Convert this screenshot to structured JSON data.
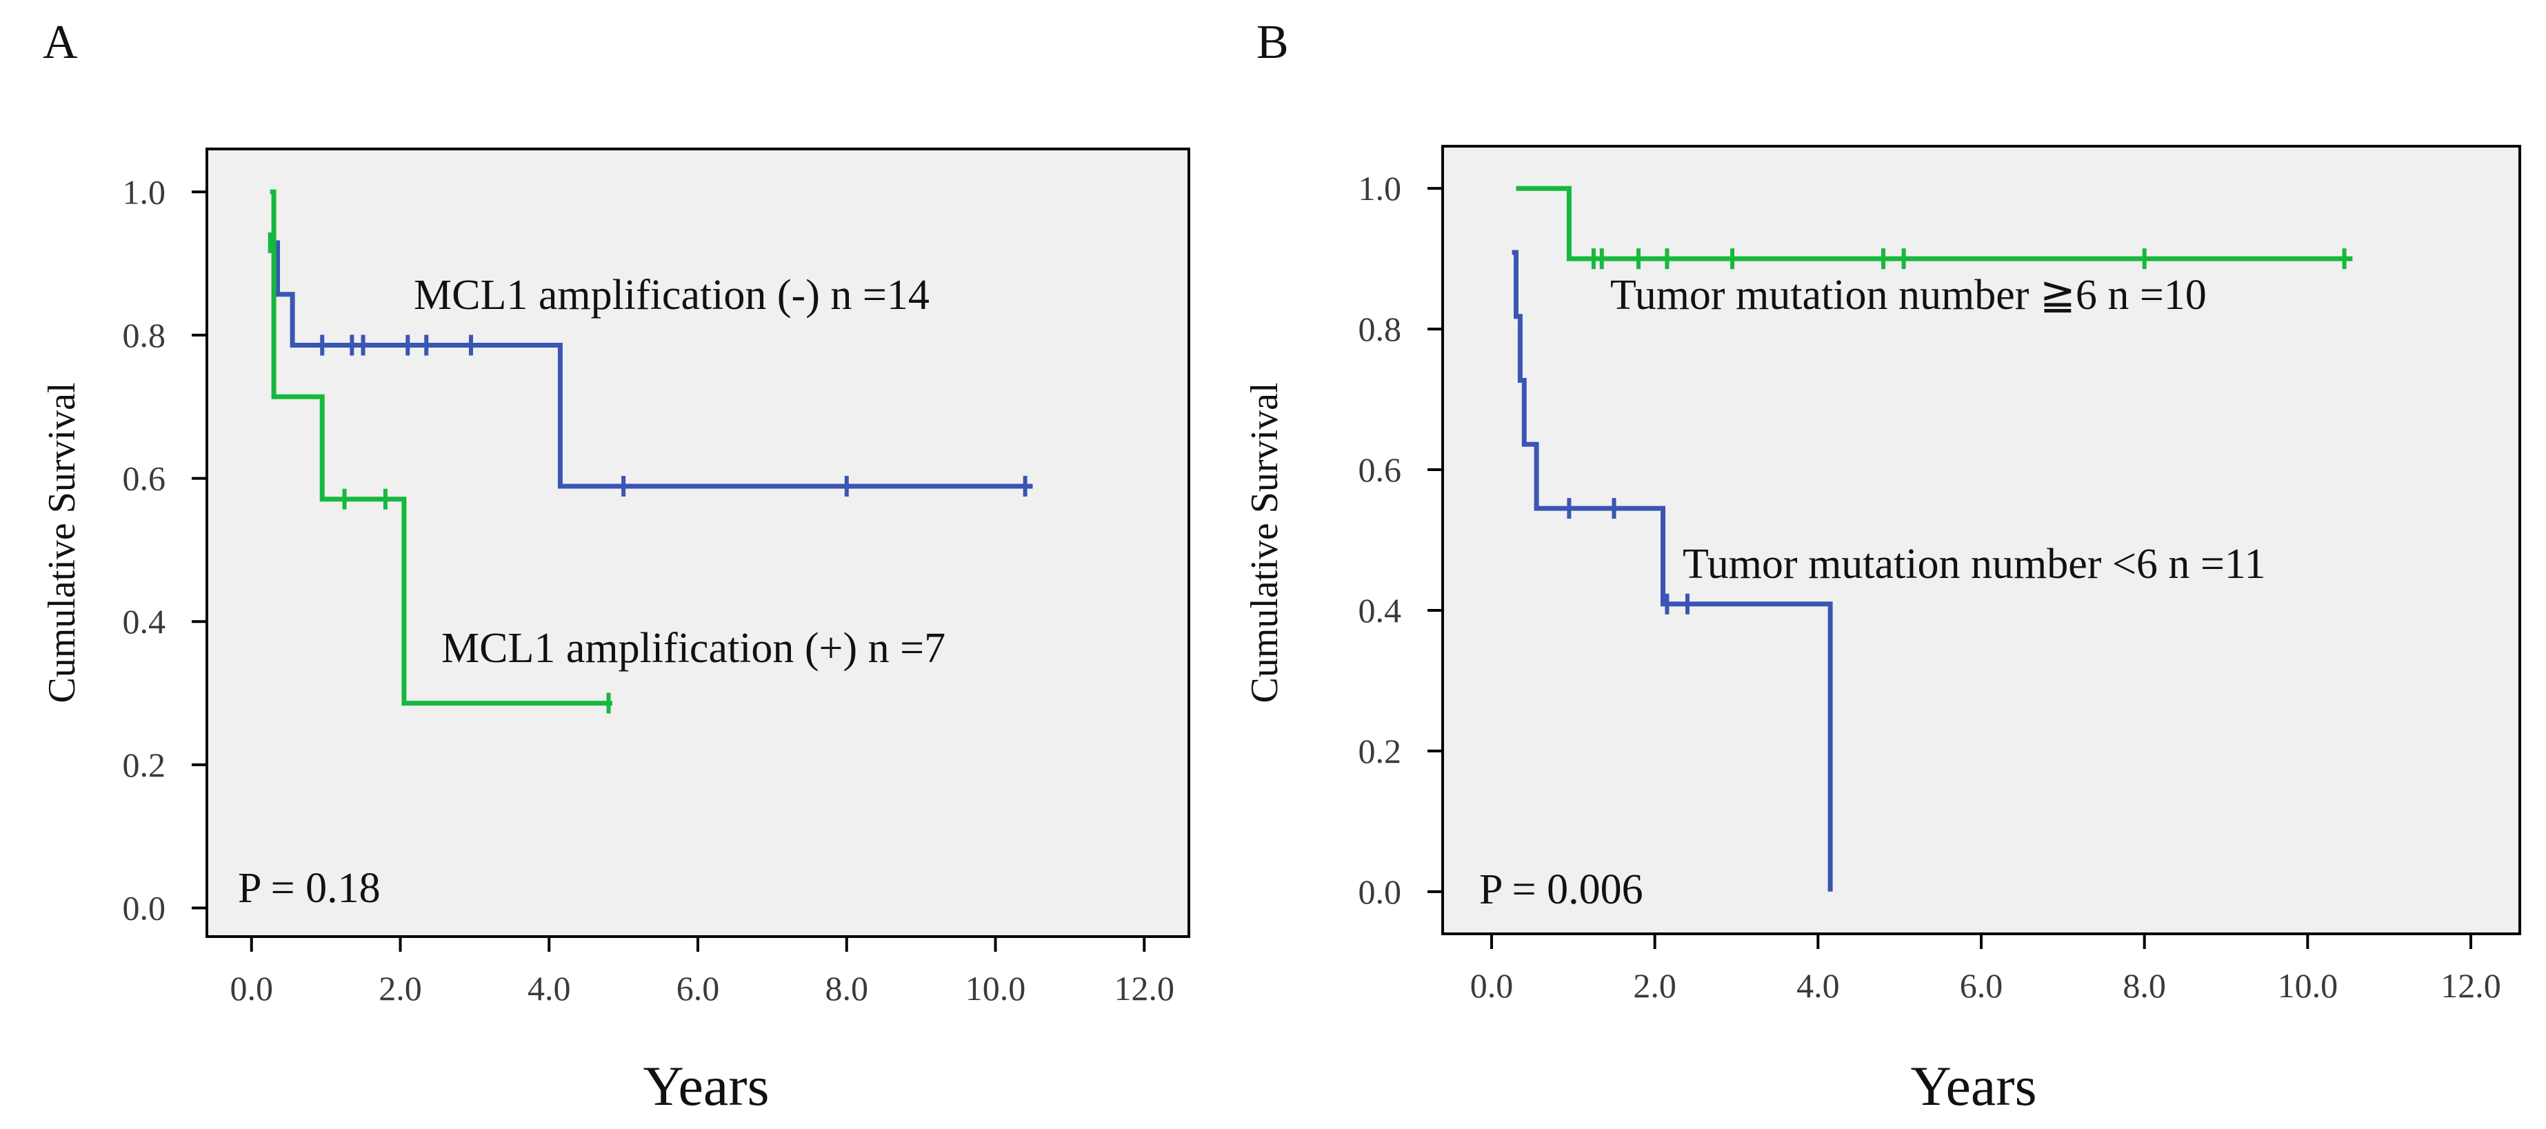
{
  "colors": {
    "blue": "#3a55b4",
    "green": "#16b83e",
    "plot_bg": "#f0f0f0",
    "axis": "#000000"
  },
  "chart_data": [
    {
      "type": "line",
      "step": true,
      "panel": "A",
      "xlabel": "Years",
      "ylabel": "Cumulative Survival",
      "xlim": [
        -0.6,
        12.6
      ],
      "ylim": [
        -0.04,
        1.06
      ],
      "x_ticks": [
        0,
        2,
        4,
        6,
        8,
        10,
        12
      ],
      "x_tick_labels": [
        "0.0",
        "2.0",
        "4.0",
        "6.0",
        "8.0",
        "10.0",
        "12.0"
      ],
      "y_ticks": [
        0,
        0.2,
        0.4,
        0.6,
        0.8,
        1.0
      ],
      "y_tick_labels": [
        "0.0",
        "0.2",
        "0.4",
        "0.6",
        "0.8",
        "1.0"
      ],
      "p_value": "P = 0.18",
      "series": [
        {
          "name": "MCL1 amplification (-)",
          "label": "MCL1 amplification (-)  n =14",
          "color": "blue",
          "steps": [
            [
              0.25,
              0.929
            ],
            [
              0.35,
              0.857
            ],
            [
              0.55,
              0.786
            ],
            [
              4.15,
              0.589
            ],
            [
              10.5,
              0.589
            ]
          ],
          "censored": [
            [
              0.95,
              0.786
            ],
            [
              1.35,
              0.786
            ],
            [
              1.5,
              0.786
            ],
            [
              2.1,
              0.786
            ],
            [
              2.35,
              0.786
            ],
            [
              2.95,
              0.786
            ],
            [
              5.0,
              0.589
            ],
            [
              8.0,
              0.589
            ],
            [
              10.4,
              0.589
            ]
          ]
        },
        {
          "name": "MCL1 amplification (+)",
          "label": "MCL1 amplification (+)  n =7",
          "color": "green",
          "steps": [
            [
              0.25,
              1.0
            ],
            [
              0.3,
              0.714
            ],
            [
              0.95,
              0.571
            ],
            [
              2.05,
              0.286
            ],
            [
              4.85,
              0.286
            ]
          ],
          "censored": [
            [
              0.25,
              0.929
            ],
            [
              1.25,
              0.571
            ],
            [
              1.8,
              0.571
            ],
            [
              4.8,
              0.286
            ]
          ]
        }
      ]
    },
    {
      "type": "line",
      "step": true,
      "panel": "B",
      "xlabel": "Years",
      "ylabel": "Cumulative Survival",
      "xlim": [
        -0.6,
        12.6
      ],
      "ylim": [
        -0.06,
        1.06
      ],
      "x_ticks": [
        0,
        2,
        4,
        6,
        8,
        10,
        12
      ],
      "x_tick_labels": [
        "0.0",
        "2.0",
        "4.0",
        "6.0",
        "8.0",
        "10.0",
        "12.0"
      ],
      "y_ticks": [
        0,
        0.2,
        0.4,
        0.6,
        0.8,
        1.0
      ],
      "y_tick_labels": [
        "0.0",
        "0.2",
        "0.4",
        "0.6",
        "0.8",
        "1.0"
      ],
      "p_value": "P = 0.006",
      "series": [
        {
          "name": "Tumor mutation number ≧6",
          "label": "Tumor mutation number ≧6  n =10",
          "color": "green",
          "steps": [
            [
              0.3,
              1.0
            ],
            [
              0.95,
              0.9
            ],
            [
              10.55,
              0.9
            ]
          ],
          "censored": [
            [
              1.25,
              0.9
            ],
            [
              1.35,
              0.9
            ],
            [
              1.8,
              0.9
            ],
            [
              2.15,
              0.9
            ],
            [
              2.95,
              0.9
            ],
            [
              4.8,
              0.9
            ],
            [
              5.05,
              0.9
            ],
            [
              8.0,
              0.9
            ],
            [
              10.45,
              0.9
            ]
          ]
        },
        {
          "name": "Tumor mutation number <6",
          "label": "Tumor mutation number <6  n =11",
          "color": "blue",
          "steps": [
            [
              0.25,
              0.909
            ],
            [
              0.3,
              0.818
            ],
            [
              0.35,
              0.727
            ],
            [
              0.4,
              0.636
            ],
            [
              0.55,
              0.545
            ],
            [
              2.1,
              0.409
            ],
            [
              4.15,
              0.0
            ]
          ],
          "censored": [
            [
              0.95,
              0.545
            ],
            [
              1.5,
              0.545
            ],
            [
              2.15,
              0.409
            ],
            [
              2.4,
              0.409
            ]
          ]
        }
      ]
    }
  ]
}
